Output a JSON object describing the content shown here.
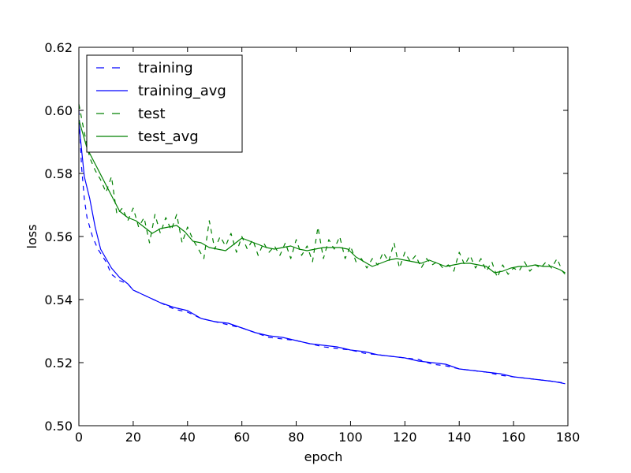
{
  "chart_data": {
    "type": "line",
    "title": "",
    "xlabel": "epoch",
    "ylabel": "loss",
    "xlim": [
      0,
      180
    ],
    "ylim": [
      0.5,
      0.62
    ],
    "xticks": [
      0,
      20,
      40,
      60,
      80,
      100,
      120,
      140,
      160,
      180
    ],
    "yticks": [
      0.5,
      0.52,
      0.54,
      0.56,
      0.58,
      0.6,
      0.62
    ],
    "ytick_labels": [
      "0.50",
      "0.52",
      "0.54",
      "0.56",
      "0.58",
      "0.60",
      "0.62"
    ],
    "grid": false,
    "legend_position": "top-left",
    "series": [
      {
        "name": "training",
        "color": "#0000ff",
        "style": "dashed",
        "x": [
          0,
          1,
          2,
          3,
          5,
          7,
          10,
          12,
          15,
          18,
          20,
          25,
          30,
          35,
          40,
          45,
          50,
          55,
          60,
          65,
          70,
          75,
          80,
          85,
          90,
          95,
          100,
          105,
          110,
          115,
          120,
          125,
          130,
          135,
          140,
          145,
          150,
          155,
          160,
          165,
          170,
          175,
          179
        ],
        "y": [
          0.6,
          0.582,
          0.572,
          0.566,
          0.56,
          0.556,
          0.552,
          0.548,
          0.546,
          0.545,
          0.543,
          0.541,
          0.539,
          0.537,
          0.536,
          0.534,
          0.533,
          0.532,
          0.531,
          0.5295,
          0.528,
          0.5275,
          0.527,
          0.526,
          0.525,
          0.5245,
          0.524,
          0.523,
          0.5225,
          0.522,
          0.5215,
          0.521,
          0.5195,
          0.519,
          0.518,
          0.5175,
          0.517,
          0.516,
          0.5155,
          0.515,
          0.5145,
          0.514,
          0.5135
        ]
      },
      {
        "name": "training_avg",
        "color": "#0000ff",
        "style": "solid",
        "x": [
          0,
          2,
          4,
          6,
          8,
          10,
          12,
          15,
          18,
          20,
          25,
          30,
          35,
          40,
          45,
          50,
          55,
          60,
          65,
          70,
          75,
          80,
          85,
          90,
          95,
          100,
          105,
          110,
          115,
          120,
          125,
          130,
          135,
          140,
          145,
          150,
          155,
          160,
          165,
          170,
          175,
          179
        ],
        "y": [
          0.596,
          0.579,
          0.572,
          0.563,
          0.556,
          0.553,
          0.55,
          0.547,
          0.545,
          0.543,
          0.541,
          0.539,
          0.5375,
          0.5365,
          0.534,
          0.533,
          0.5325,
          0.531,
          0.5295,
          0.5285,
          0.528,
          0.527,
          0.526,
          0.5255,
          0.525,
          0.524,
          0.5235,
          0.5225,
          0.522,
          0.5215,
          0.5205,
          0.52,
          0.5195,
          0.518,
          0.5175,
          0.517,
          0.5165,
          0.5155,
          0.515,
          0.5145,
          0.514,
          0.5133
        ]
      },
      {
        "name": "test",
        "color": "#008000",
        "style": "dashed",
        "x": [
          0,
          2,
          4,
          6,
          8,
          10,
          12,
          14,
          16,
          18,
          20,
          22,
          24,
          26,
          28,
          30,
          32,
          34,
          36,
          38,
          40,
          42,
          44,
          46,
          48,
          50,
          52,
          54,
          56,
          58,
          60,
          62,
          64,
          66,
          68,
          70,
          72,
          74,
          76,
          78,
          80,
          82,
          84,
          86,
          88,
          90,
          92,
          94,
          96,
          98,
          100,
          102,
          104,
          106,
          108,
          110,
          112,
          114,
          116,
          118,
          120,
          122,
          124,
          126,
          128,
          130,
          132,
          134,
          136,
          138,
          140,
          142,
          144,
          146,
          148,
          150,
          152,
          154,
          156,
          158,
          160,
          162,
          164,
          166,
          168,
          170,
          172,
          174,
          176,
          178,
          179
        ],
        "y": [
          0.602,
          0.593,
          0.585,
          0.581,
          0.578,
          0.574,
          0.579,
          0.567,
          0.569,
          0.565,
          0.569,
          0.563,
          0.566,
          0.558,
          0.567,
          0.561,
          0.566,
          0.562,
          0.567,
          0.558,
          0.563,
          0.559,
          0.556,
          0.553,
          0.565,
          0.556,
          0.56,
          0.557,
          0.561,
          0.555,
          0.56,
          0.556,
          0.559,
          0.554,
          0.558,
          0.555,
          0.557,
          0.554,
          0.558,
          0.553,
          0.559,
          0.554,
          0.557,
          0.552,
          0.563,
          0.553,
          0.559,
          0.556,
          0.56,
          0.553,
          0.557,
          0.552,
          0.553,
          0.55,
          0.553,
          0.551,
          0.555,
          0.552,
          0.558,
          0.55,
          0.555,
          0.552,
          0.554,
          0.55,
          0.553,
          0.551,
          0.552,
          0.55,
          0.551,
          0.549,
          0.555,
          0.551,
          0.554,
          0.55,
          0.553,
          0.549,
          0.552,
          0.547,
          0.551,
          0.548,
          0.55,
          0.549,
          0.552,
          0.549,
          0.551,
          0.55,
          0.552,
          0.55,
          0.553,
          0.549,
          0.548
        ]
      },
      {
        "name": "test_avg",
        "color": "#008000",
        "style": "solid",
        "x": [
          0,
          3,
          6,
          9,
          12,
          15,
          18,
          21,
          24,
          27,
          30,
          33,
          36,
          39,
          42,
          45,
          48,
          51,
          54,
          57,
          60,
          63,
          66,
          69,
          72,
          75,
          78,
          81,
          84,
          87,
          90,
          93,
          96,
          99,
          102,
          105,
          108,
          111,
          114,
          117,
          120,
          123,
          126,
          129,
          132,
          135,
          138,
          141,
          144,
          147,
          150,
          153,
          156,
          159,
          162,
          165,
          168,
          171,
          174,
          177,
          179
        ],
        "y": [
          0.597,
          0.588,
          0.583,
          0.578,
          0.573,
          0.568,
          0.566,
          0.565,
          0.563,
          0.561,
          0.5625,
          0.563,
          0.5635,
          0.5615,
          0.5585,
          0.558,
          0.5565,
          0.556,
          0.5555,
          0.5575,
          0.5595,
          0.5585,
          0.5575,
          0.5565,
          0.556,
          0.5565,
          0.557,
          0.556,
          0.5555,
          0.556,
          0.5565,
          0.5565,
          0.5565,
          0.556,
          0.5535,
          0.552,
          0.5505,
          0.5515,
          0.5525,
          0.553,
          0.5525,
          0.552,
          0.5515,
          0.5525,
          0.5515,
          0.5505,
          0.551,
          0.5515,
          0.5515,
          0.551,
          0.5505,
          0.5485,
          0.549,
          0.55,
          0.5505,
          0.5505,
          0.551,
          0.5505,
          0.5505,
          0.5495,
          0.5485
        ]
      }
    ]
  }
}
